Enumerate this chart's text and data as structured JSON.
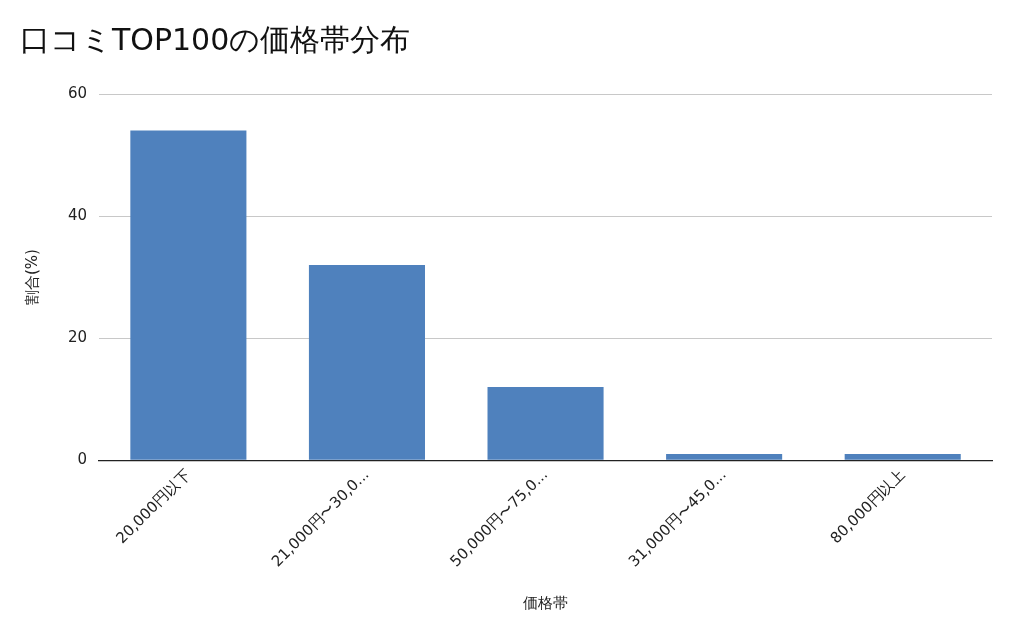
{
  "chart_data": {
    "type": "bar",
    "title": "口コミTOP100の価格帯分布",
    "xlabel": "価格帯",
    "ylabel": "割合(%)",
    "categories": [
      "20,000円以下",
      "21,000円〜30,0...",
      "50,000円〜75,0...",
      "31,000円〜45,0...",
      "80,000円以上"
    ],
    "values": [
      54,
      32,
      12,
      1,
      1
    ],
    "color": "#4f81bd",
    "ylim": [
      0,
      60
    ],
    "yticks": [
      0,
      20,
      40,
      60
    ],
    "grid": "y",
    "legend": false
  }
}
